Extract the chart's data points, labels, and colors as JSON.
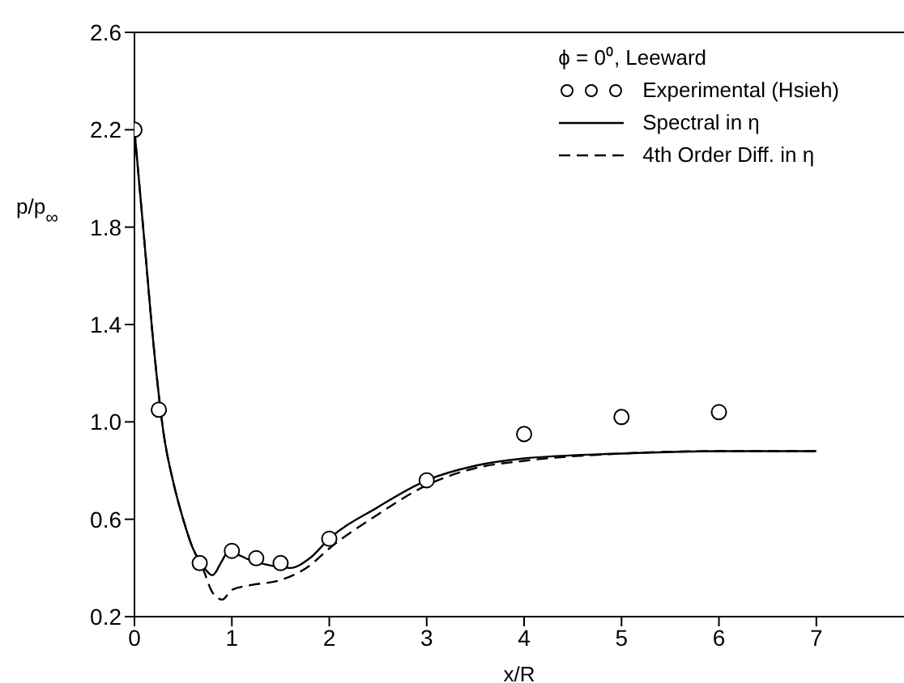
{
  "chart_data": {
    "type": "line",
    "xlabel": "x/R",
    "ylabel": "p/p$_{∞}$",
    "legend_title": "ϕ = 0⁰, Leeward",
    "xlim": [
      0,
      7.9
    ],
    "ylim": [
      0.2,
      2.6
    ],
    "xticks": [
      0,
      1,
      2,
      3,
      4,
      5,
      6,
      7
    ],
    "yticks": [
      0.2,
      0.6,
      {
        "value": 1,
        "label": "1.0"
      },
      1.4,
      1.8,
      2.2,
      2.6
    ],
    "grid": false,
    "legend": "top right",
    "series": [
      {
        "name": "Experimental (Hsieh)",
        "type": "scatter",
        "marker": "circle",
        "color": "#000000",
        "x": [
          0,
          0.25,
          0.67,
          1.0,
          1.25,
          1.5,
          2,
          3,
          4,
          5,
          6
        ],
        "values": [
          2.2,
          1.05,
          0.42,
          0.47,
          0.44,
          0.42,
          0.52,
          0.76,
          0.95,
          1.02,
          1.04
        ]
      },
      {
        "name": "Spectral in η",
        "line_style": "solid",
        "marker": "none",
        "color": "#000000",
        "x": [
          0,
          0.1,
          0.2,
          0.3,
          0.4,
          0.5,
          0.6,
          0.7,
          0.8,
          0.9,
          0.95,
          1.0,
          1.2,
          1.4,
          1.6,
          1.8,
          2.0,
          2.5,
          3.0,
          3.5,
          4,
          5,
          6,
          7
        ],
        "values": [
          2.2,
          1.75,
          1.3,
          0.95,
          0.75,
          0.6,
          0.48,
          0.41,
          0.37,
          0.43,
          0.46,
          0.46,
          0.43,
          0.41,
          0.4,
          0.44,
          0.52,
          0.65,
          0.76,
          0.82,
          0.85,
          0.87,
          0.88,
          0.88
        ]
      },
      {
        "name": "4th Order Diff. in η",
        "line_style": "dashed",
        "marker": "none",
        "color": "#000000",
        "x": [
          0,
          0.1,
          0.2,
          0.3,
          0.4,
          0.5,
          0.6,
          0.7,
          0.8,
          0.9,
          1.0,
          1.2,
          1.5,
          1.8,
          2.0,
          2.5,
          3.0,
          3.5,
          4,
          5,
          6,
          7
        ],
        "values": [
          2.2,
          1.75,
          1.3,
          0.95,
          0.75,
          0.6,
          0.48,
          0.4,
          0.3,
          0.27,
          0.31,
          0.33,
          0.35,
          0.41,
          0.48,
          0.62,
          0.74,
          0.81,
          0.84,
          0.87,
          0.88,
          0.88
        ]
      }
    ]
  }
}
